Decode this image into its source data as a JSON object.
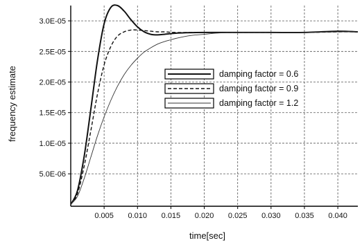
{
  "chart_data": {
    "type": "line",
    "title": "",
    "xlabel": "time[sec]",
    "ylabel": "frequency estimate",
    "xlim": [
      0,
      0.043
    ],
    "ylim": [
      -3e-07,
      3.25e-05
    ],
    "x_ticks": [
      0.005,
      0.01,
      0.015,
      0.02,
      0.025,
      0.03,
      0.035,
      0.04
    ],
    "x_tick_labels": [
      "0.005",
      "0.010",
      "0.015",
      "0.020",
      "0.025",
      "0.030",
      "0.035",
      "0.040"
    ],
    "y_ticks": [
      5e-06,
      1e-05,
      1.5e-05,
      2e-05,
      2.5e-05,
      3e-05
    ],
    "y_tick_labels": [
      "5.0E-06",
      "1.0E-05",
      "1.5E-05",
      "2.0E-05",
      "2.5E-05",
      "3.0E-05"
    ],
    "grid": true,
    "legend_position": "center-right",
    "series": [
      {
        "name": "damping factor = 0.6",
        "style": "solid-thick",
        "x": [
          0,
          0.001,
          0.002,
          0.003,
          0.004,
          0.005,
          0.006,
          0.007,
          0.008,
          0.009,
          0.01,
          0.011,
          0.012,
          0.013,
          0.014,
          0.016,
          0.02,
          0.025,
          0.03,
          0.035,
          0.04,
          0.043
        ],
        "y": [
          0,
          2.2e-06,
          7.8e-06,
          1.55e-05,
          2.35e-05,
          2.95e-05,
          3.22e-05,
          3.25e-05,
          3.16e-05,
          3.02e-05,
          2.9e-05,
          2.82e-05,
          2.78e-05,
          2.77e-05,
          2.78e-05,
          2.8e-05,
          2.81e-05,
          2.81e-05,
          2.81e-05,
          2.81e-05,
          2.83e-05,
          2.82e-05
        ]
      },
      {
        "name": "damping factor = 0.9",
        "style": "dashed",
        "x": [
          0,
          0.001,
          0.002,
          0.003,
          0.004,
          0.005,
          0.006,
          0.007,
          0.008,
          0.009,
          0.01,
          0.011,
          0.012,
          0.013,
          0.014,
          0.016,
          0.02,
          0.025,
          0.03,
          0.035,
          0.04,
          0.043
        ],
        "y": [
          0,
          1.7e-06,
          6.2e-06,
          1.2e-05,
          1.8e-05,
          2.28e-05,
          2.58e-05,
          2.75e-05,
          2.82e-05,
          2.85e-05,
          2.85e-05,
          2.84e-05,
          2.83e-05,
          2.82e-05,
          2.82e-05,
          2.81e-05,
          2.81e-05,
          2.81e-05,
          2.81e-05,
          2.81e-05,
          2.82e-05,
          2.82e-05
        ]
      },
      {
        "name": "damping factor = 1.2",
        "style": "solid-thin",
        "x": [
          0,
          0.001,
          0.002,
          0.003,
          0.004,
          0.005,
          0.006,
          0.007,
          0.008,
          0.009,
          0.01,
          0.011,
          0.012,
          0.013,
          0.014,
          0.015,
          0.016,
          0.018,
          0.02,
          0.022,
          0.025,
          0.03,
          0.035,
          0.04,
          0.043
        ],
        "y": [
          0,
          1.3e-06,
          4.2e-06,
          7.7e-06,
          1.12e-05,
          1.43e-05,
          1.7e-05,
          1.93e-05,
          2.12e-05,
          2.27e-05,
          2.39e-05,
          2.49e-05,
          2.56e-05,
          2.62e-05,
          2.66e-05,
          2.69e-05,
          2.72e-05,
          2.76e-05,
          2.78e-05,
          2.8e-05,
          2.81e-05,
          2.81e-05,
          2.81e-05,
          2.82e-05,
          2.82e-05
        ]
      }
    ]
  }
}
